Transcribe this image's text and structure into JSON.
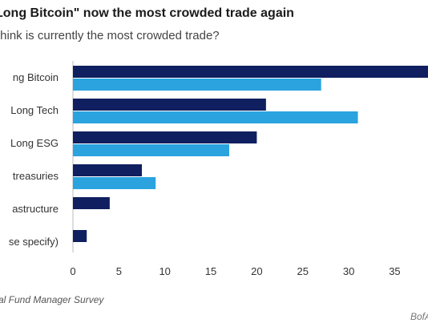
{
  "header": {
    "title": "Long Bitcoin\" now the most crowded trade again",
    "subtitle": "think is currently the most crowded trade?"
  },
  "footer": {
    "source": "al Fund Manager Survey",
    "credit": "BofA"
  },
  "colors": {
    "series_dark": "#0f1f5f",
    "series_light": "#2aa3df",
    "axis": "#bbbbbb",
    "tick_text": "#333333"
  },
  "chart_data": {
    "type": "bar",
    "orientation": "horizontal",
    "categories": [
      "ng Bitcoin",
      "Long Tech",
      "Long ESG",
      "treasuries",
      "astructure",
      "se specify)"
    ],
    "series": [
      {
        "values": [
          39,
          21,
          20,
          7.5,
          4,
          1.5
        ]
      },
      {
        "values": [
          27,
          31,
          17,
          9,
          null,
          null
        ]
      }
    ],
    "xlim": [
      0,
      39
    ],
    "xticks": [
      0,
      5,
      10,
      15,
      20,
      25,
      30,
      35
    ],
    "grid": false,
    "legend": "none"
  }
}
